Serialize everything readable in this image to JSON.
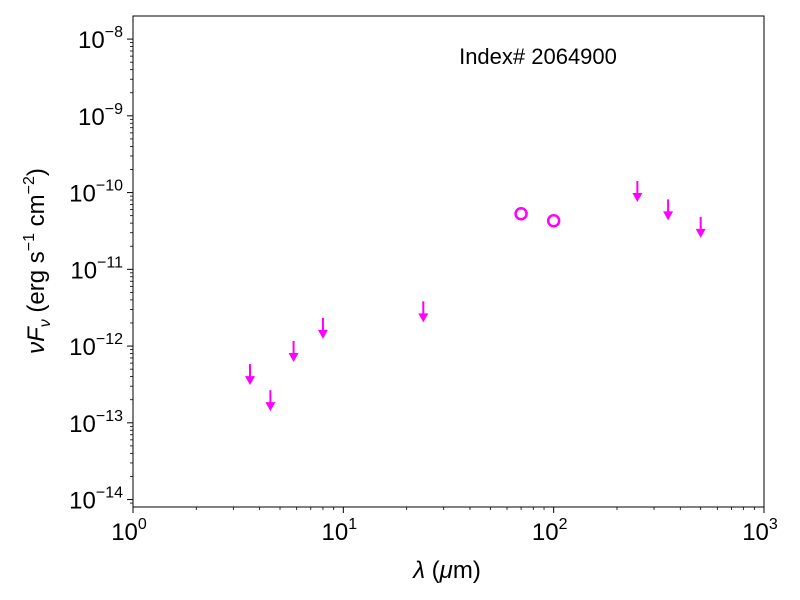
{
  "chart_data": {
    "type": "scatter",
    "annotation": "Index# 2064900",
    "xlabel": {
      "sym": "λ",
      "open": " (",
      "mu": "μ",
      "unit": "m)"
    },
    "ylabel": {
      "nu": "ν",
      "F": "F",
      "sub": "ν",
      "open": " (erg s",
      "exp1": "−1",
      "mid": " cm",
      "exp2": "−2",
      "close": ")"
    },
    "x_scale": "log",
    "y_scale": "log",
    "xlim": [
      1,
      1000
    ],
    "ylim": [
      8e-15,
      2e-08
    ],
    "x_ticks": [
      {
        "base": "10",
        "exp": "0",
        "value": 1
      },
      {
        "base": "10",
        "exp": "1",
        "value": 10
      },
      {
        "base": "10",
        "exp": "2",
        "value": 100
      },
      {
        "base": "10",
        "exp": "3",
        "value": 1000
      }
    ],
    "y_ticks": [
      {
        "base": "10",
        "exp": "−14",
        "value": 1e-14
      },
      {
        "base": "10",
        "exp": "−13",
        "value": 1e-13
      },
      {
        "base": "10",
        "exp": "−12",
        "value": 1e-12
      },
      {
        "base": "10",
        "exp": "−11",
        "value": 1e-11
      },
      {
        "base": "10",
        "exp": "−10",
        "value": 1e-10
      },
      {
        "base": "10",
        "exp": "−9",
        "value": 1e-09
      },
      {
        "base": "10",
        "exp": "−8",
        "value": 1e-08
      }
    ],
    "grid": false,
    "color": "#ff00ff",
    "series": [
      {
        "marker": "down-arrow",
        "points": [
          {
            "x": 3.6,
            "y": 3.5e-13
          },
          {
            "x": 4.5,
            "y": 1.6e-13
          },
          {
            "x": 5.8,
            "y": 7e-13
          },
          {
            "x": 8.0,
            "y": 1.4e-12
          },
          {
            "x": 24,
            "y": 2.3e-12
          },
          {
            "x": 250,
            "y": 8.5e-11
          },
          {
            "x": 350,
            "y": 4.9e-11
          },
          {
            "x": 500,
            "y": 2.9e-11
          }
        ]
      },
      {
        "marker": "open-circle",
        "points": [
          {
            "x": 70,
            "y": 5.3e-11
          },
          {
            "x": 100,
            "y": 4.3e-11
          }
        ]
      }
    ]
  }
}
